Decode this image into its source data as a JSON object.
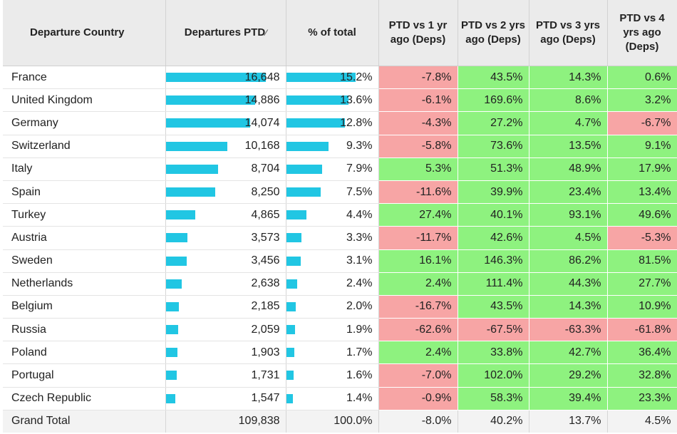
{
  "headers": {
    "country": "Departure Country",
    "departures": "Departures PTD",
    "pct_total": "% of total",
    "vs1": "PTD vs 1 yr ago (Deps)",
    "vs2": "PTD vs 2 yrs ago (Deps)",
    "vs3": "PTD vs 3 yrs ago (Deps)",
    "vs4": "PTD vs 4 yrs ago (Deps)"
  },
  "colors": {
    "bar": "#21c6e3",
    "positive": "#8ef27f",
    "negative": "#f7a5a5"
  },
  "rows": [
    {
      "country": "France",
      "departures": "16,648",
      "departures_value": 16648,
      "pct": "15.2%",
      "pct_value": 15.2,
      "vs1": "-7.8%",
      "vs2": "43.5%",
      "vs3": "14.3%",
      "vs4": "0.6%"
    },
    {
      "country": "United Kingdom",
      "departures": "14,886",
      "departures_value": 14886,
      "pct": "13.6%",
      "pct_value": 13.6,
      "vs1": "-6.1%",
      "vs2": "169.6%",
      "vs3": "8.6%",
      "vs4": "3.2%"
    },
    {
      "country": "Germany",
      "departures": "14,074",
      "departures_value": 14074,
      "pct": "12.8%",
      "pct_value": 12.8,
      "vs1": "-4.3%",
      "vs2": "27.2%",
      "vs3": "4.7%",
      "vs4": "-6.7%"
    },
    {
      "country": "Switzerland",
      "departures": "10,168",
      "departures_value": 10168,
      "pct": "9.3%",
      "pct_value": 9.3,
      "vs1": "-5.8%",
      "vs2": "73.6%",
      "vs3": "13.5%",
      "vs4": "9.1%"
    },
    {
      "country": "Italy",
      "departures": "8,704",
      "departures_value": 8704,
      "pct": "7.9%",
      "pct_value": 7.9,
      "vs1": "5.3%",
      "vs2": "51.3%",
      "vs3": "48.9%",
      "vs4": "17.9%"
    },
    {
      "country": "Spain",
      "departures": "8,250",
      "departures_value": 8250,
      "pct": "7.5%",
      "pct_value": 7.5,
      "vs1": "-11.6%",
      "vs2": "39.9%",
      "vs3": "23.4%",
      "vs4": "13.4%"
    },
    {
      "country": "Turkey",
      "departures": "4,865",
      "departures_value": 4865,
      "pct": "4.4%",
      "pct_value": 4.4,
      "vs1": "27.4%",
      "vs2": "40.1%",
      "vs3": "93.1%",
      "vs4": "49.6%"
    },
    {
      "country": "Austria",
      "departures": "3,573",
      "departures_value": 3573,
      "pct": "3.3%",
      "pct_value": 3.3,
      "vs1": "-11.7%",
      "vs2": "42.6%",
      "vs3": "4.5%",
      "vs4": "-5.3%"
    },
    {
      "country": "Sweden",
      "departures": "3,456",
      "departures_value": 3456,
      "pct": "3.1%",
      "pct_value": 3.1,
      "vs1": "16.1%",
      "vs2": "146.3%",
      "vs3": "86.2%",
      "vs4": "81.5%"
    },
    {
      "country": "Netherlands",
      "departures": "2,638",
      "departures_value": 2638,
      "pct": "2.4%",
      "pct_value": 2.4,
      "vs1": "2.4%",
      "vs2": "111.4%",
      "vs3": "44.3%",
      "vs4": "27.7%"
    },
    {
      "country": "Belgium",
      "departures": "2,185",
      "departures_value": 2185,
      "pct": "2.0%",
      "pct_value": 2.0,
      "vs1": "-16.7%",
      "vs2": "43.5%",
      "vs3": "14.3%",
      "vs4": "10.9%"
    },
    {
      "country": "Russia",
      "departures": "2,059",
      "departures_value": 2059,
      "pct": "1.9%",
      "pct_value": 1.9,
      "vs1": "-62.6%",
      "vs2": "-67.5%",
      "vs3": "-63.3%",
      "vs4": "-61.8%"
    },
    {
      "country": "Poland",
      "departures": "1,903",
      "departures_value": 1903,
      "pct": "1.7%",
      "pct_value": 1.7,
      "vs1": "2.4%",
      "vs2": "33.8%",
      "vs3": "42.7%",
      "vs4": "36.4%"
    },
    {
      "country": "Portugal",
      "departures": "1,731",
      "departures_value": 1731,
      "pct": "1.6%",
      "pct_value": 1.6,
      "vs1": "-7.0%",
      "vs2": "102.0%",
      "vs3": "29.2%",
      "vs4": "32.8%"
    },
    {
      "country": "Czech Republic",
      "departures": "1,547",
      "departures_value": 1547,
      "pct": "1.4%",
      "pct_value": 1.4,
      "vs1": "-0.9%",
      "vs2": "58.3%",
      "vs3": "39.4%",
      "vs4": "23.3%"
    }
  ],
  "total": {
    "country": "Grand Total",
    "departures": "109,838",
    "pct": "100.0%",
    "vs1": "-8.0%",
    "vs2": "40.2%",
    "vs3": "13.7%",
    "vs4": "4.5%"
  }
}
